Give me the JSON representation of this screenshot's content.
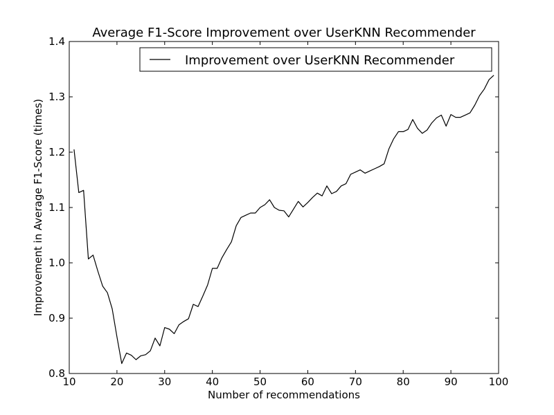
{
  "chart_data": {
    "type": "line",
    "title": "Average F1-Score Improvement over UserKNN Recommender",
    "xlabel": "Number of recommendations",
    "ylabel": "Improvement in Average F1-Score (times)",
    "xlim": [
      10,
      100
    ],
    "ylim": [
      0.8,
      1.4
    ],
    "xticks": [
      10,
      20,
      30,
      40,
      50,
      60,
      70,
      80,
      90,
      100
    ],
    "xtick_labels": [
      "10",
      "20",
      "30",
      "40",
      "50",
      "60",
      "70",
      "80",
      "90",
      "100"
    ],
    "yticks": [
      0.8,
      0.9,
      1.0,
      1.1,
      1.2,
      1.3,
      1.4
    ],
    "ytick_labels": [
      "0.8",
      "0.9",
      "1.0",
      "1.1",
      "1.2",
      "1.3",
      "1.4"
    ],
    "grid": false,
    "legend_position": "upper-right",
    "line_color": "#000000",
    "series": [
      {
        "name": "Improvement over UserKNN Recommender",
        "x": [
          11,
          12,
          13,
          14,
          15,
          16,
          17,
          18,
          19,
          20,
          21,
          22,
          23,
          24,
          25,
          26,
          27,
          28,
          29,
          30,
          31,
          32,
          33,
          34,
          35,
          36,
          37,
          38,
          39,
          40,
          41,
          42,
          43,
          44,
          45,
          46,
          47,
          48,
          49,
          50,
          51,
          52,
          53,
          54,
          55,
          56,
          57,
          58,
          59,
          60,
          61,
          62,
          63,
          64,
          65,
          66,
          67,
          68,
          69,
          70,
          71,
          72,
          73,
          74,
          75,
          76,
          77,
          78,
          79,
          80,
          81,
          82,
          83,
          84,
          85,
          86,
          87,
          88,
          89,
          90,
          91,
          92,
          93,
          94,
          95,
          96,
          97,
          98,
          99
        ],
        "y": [
          1.205,
          1.127,
          1.131,
          1.007,
          1.014,
          0.985,
          0.958,
          0.946,
          0.917,
          0.866,
          0.818,
          0.837,
          0.833,
          0.825,
          0.832,
          0.834,
          0.841,
          0.864,
          0.85,
          0.883,
          0.88,
          0.872,
          0.888,
          0.894,
          0.899,
          0.925,
          0.921,
          0.94,
          0.96,
          0.99,
          0.99,
          1.009,
          1.024,
          1.038,
          1.067,
          1.082,
          1.086,
          1.09,
          1.09,
          1.1,
          1.105,
          1.114,
          1.1,
          1.095,
          1.094,
          1.083,
          1.097,
          1.111,
          1.101,
          1.109,
          1.118,
          1.126,
          1.121,
          1.139,
          1.125,
          1.129,
          1.139,
          1.143,
          1.16,
          1.164,
          1.168,
          1.162,
          1.166,
          1.17,
          1.174,
          1.179,
          1.206,
          1.224,
          1.237,
          1.237,
          1.241,
          1.259,
          1.243,
          1.234,
          1.24,
          1.253,
          1.262,
          1.267,
          1.247,
          1.268,
          1.263,
          1.263,
          1.267,
          1.271,
          1.285,
          1.302,
          1.314,
          1.331,
          1.339
        ]
      }
    ]
  }
}
